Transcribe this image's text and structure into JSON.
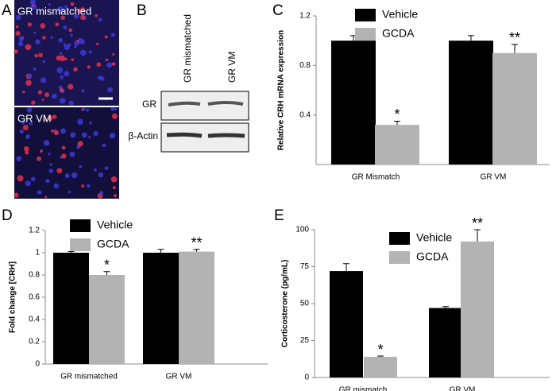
{
  "figure": {
    "panel_a": {
      "label": "A",
      "top_caption": "GR mismatched",
      "bottom_caption": "GR VM"
    },
    "panel_b": {
      "label": "B",
      "columns": [
        "GR mismatched",
        "GR VM"
      ],
      "rows": [
        "GR",
        "β-Actin"
      ]
    }
  },
  "chart_data": [
    {
      "type": "bar",
      "panel": "C",
      "y_label": "Relative CRH mRNA expression",
      "categories": [
        "GR Mismatch",
        "GR VM"
      ],
      "series": [
        {
          "name": "Vehicle",
          "color": "#000000",
          "values": [
            1.0,
            1.0
          ],
          "errors": [
            0.04,
            0.04
          ]
        },
        {
          "name": "GCDA",
          "color": "#b3b3b3",
          "values": [
            0.32,
            0.9
          ],
          "errors": [
            0.03,
            0.07
          ],
          "markers": [
            "*",
            "**"
          ]
        }
      ],
      "ylim": [
        0,
        1.2
      ],
      "yticks": [
        0.4,
        0.8,
        1.2
      ]
    },
    {
      "type": "bar",
      "panel": "D",
      "y_label": "Fold change [CRH]",
      "categories": [
        "GR mismatched",
        "GR VM"
      ],
      "series": [
        {
          "name": "Vehicle",
          "color": "#000000",
          "values": [
            1.0,
            1.0
          ],
          "errors": [
            0.01,
            0.03
          ]
        },
        {
          "name": "GCDA",
          "color": "#b3b3b3",
          "values": [
            0.8,
            1.01
          ],
          "errors": [
            0.03,
            0.02
          ],
          "markers": [
            "*",
            "**"
          ]
        }
      ],
      "ylim": [
        0,
        1.2
      ],
      "yticks": [
        0,
        0.2,
        0.4,
        0.6,
        0.8,
        1,
        1.2
      ]
    },
    {
      "type": "bar",
      "panel": "E",
      "y_label": "Corticosterone (pg/mL)",
      "categories": [
        "GR mismatch",
        "GR VM"
      ],
      "series": [
        {
          "name": "Vehicle",
          "color": "#000000",
          "values": [
            72,
            47
          ],
          "errors": [
            5,
            1
          ]
        },
        {
          "name": "GCDA",
          "color": "#b3b3b3",
          "values": [
            14,
            92
          ],
          "errors": [
            0.5,
            8
          ],
          "markers": [
            "*",
            "**"
          ]
        }
      ],
      "ylim": [
        0,
        100
      ],
      "yticks": [
        0,
        25,
        50,
        75,
        100
      ]
    }
  ]
}
